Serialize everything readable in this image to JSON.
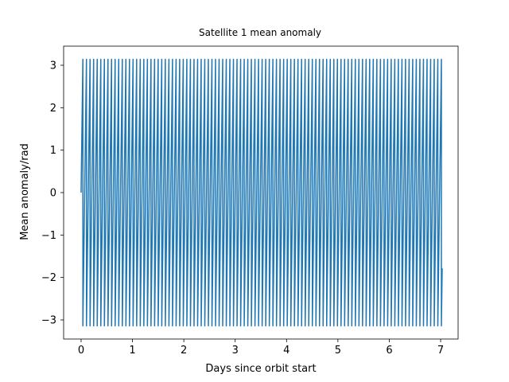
{
  "chart_data": {
    "type": "line",
    "title": "Satellite 1 mean anomaly",
    "xlabel": "Days since orbit start",
    "ylabel": "Mean anomaly/rad",
    "xlim": [
      -0.34,
      7.34
    ],
    "ylim": [
      -3.45,
      3.45
    ],
    "xticks": [
      0,
      1,
      2,
      3,
      4,
      5,
      6,
      7
    ],
    "xtick_labels": [
      "0",
      "1",
      "2",
      "3",
      "4",
      "5",
      "6",
      "7"
    ],
    "yticks": [
      -3,
      -2,
      -1,
      0,
      1,
      2,
      3
    ],
    "ytick_labels": [
      "−3",
      "−2",
      "−1",
      "0",
      "1",
      "2",
      "3"
    ],
    "grid": false,
    "series": [
      {
        "color": "#1f77b4",
        "x_start": 0,
        "x_end": 7.03,
        "y_start": 0,
        "y_min": -3.14159,
        "y_max": 3.14159,
        "orbital_period_days": 0.0698,
        "note_shape": "sawtooth"
      }
    ]
  }
}
